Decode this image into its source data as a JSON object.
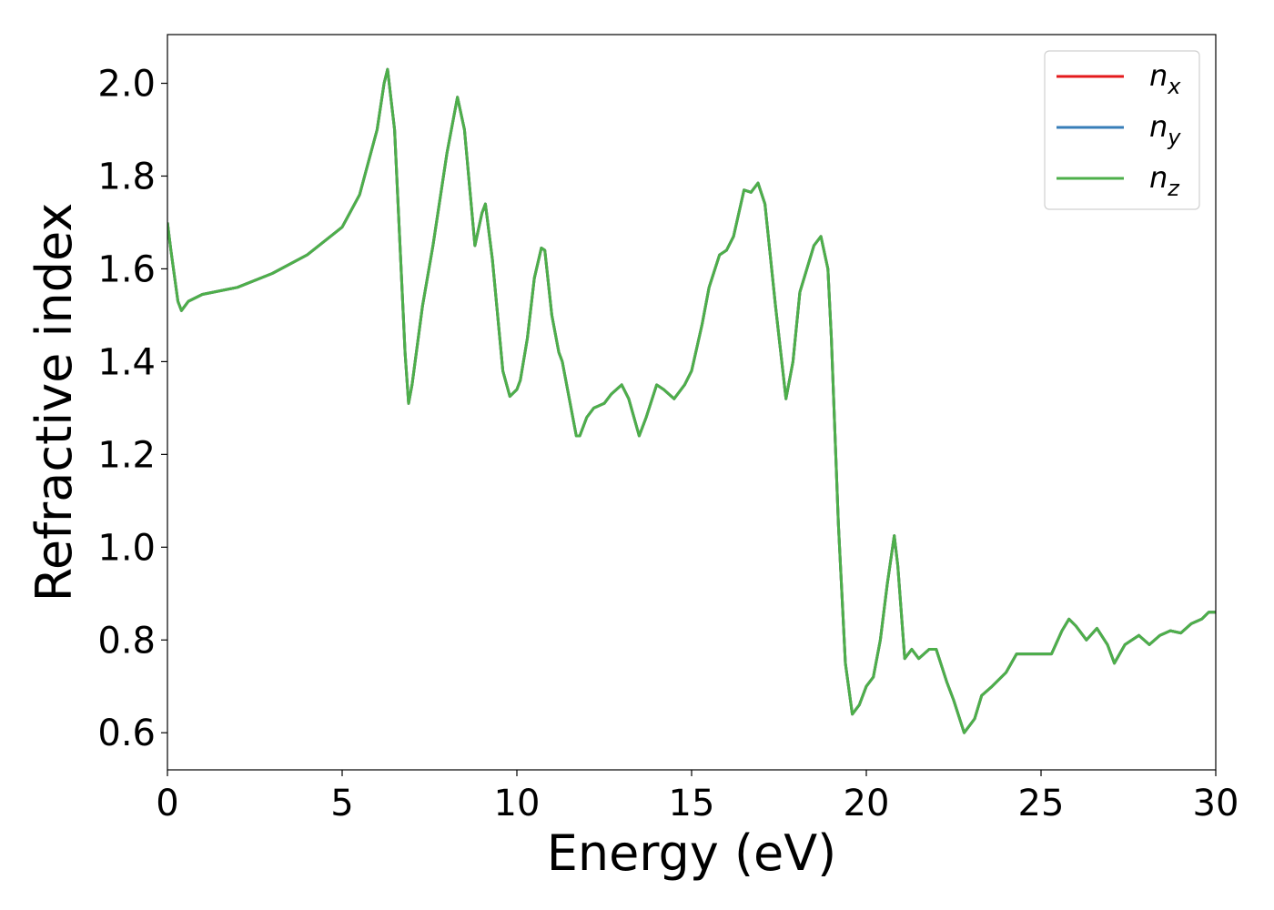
{
  "chart_data": {
    "type": "line",
    "title": "",
    "xlabel": "Energy (eV)",
    "ylabel": "Refractive index",
    "xlim": [
      0,
      30
    ],
    "ylim": [
      0.52,
      2.105
    ],
    "xticks": [
      0,
      5,
      10,
      15,
      20,
      25,
      30
    ],
    "xtick_labels": [
      "0",
      "5",
      "10",
      "15",
      "20",
      "25",
      "30"
    ],
    "yticks": [
      0.6,
      0.8,
      1.0,
      1.2,
      1.4,
      1.6,
      1.8,
      2.0
    ],
    "ytick_labels": [
      "0.6",
      "0.8",
      "1.0",
      "1.2",
      "1.4",
      "1.6",
      "1.8",
      "2.0"
    ],
    "grid": false,
    "legend_position": "top-right",
    "x": [
      0,
      0.1,
      0.3,
      0.4,
      0.6,
      1.0,
      2.0,
      3.0,
      4.0,
      5.0,
      5.5,
      6.0,
      6.2,
      6.3,
      6.5,
      6.8,
      6.9,
      7.0,
      7.3,
      7.6,
      8.0,
      8.3,
      8.5,
      8.8,
      9.0,
      9.1,
      9.3,
      9.6,
      9.8,
      10.0,
      10.1,
      10.3,
      10.5,
      10.7,
      10.8,
      11.0,
      11.2,
      11.3,
      11.5,
      11.7,
      11.8,
      12.0,
      12.2,
      12.5,
      12.7,
      13.0,
      13.2,
      13.5,
      13.7,
      14.0,
      14.2,
      14.5,
      14.8,
      15.0,
      15.3,
      15.5,
      15.8,
      16.0,
      16.2,
      16.5,
      16.7,
      16.9,
      17.1,
      17.4,
      17.7,
      17.9,
      18.1,
      18.3,
      18.5,
      18.7,
      18.9,
      19.0,
      19.2,
      19.4,
      19.6,
      19.8,
      20.0,
      20.2,
      20.4,
      20.6,
      20.8,
      20.9,
      21.1,
      21.3,
      21.5,
      21.8,
      22.0,
      22.3,
      22.5,
      22.8,
      23.0,
      23.1,
      23.3,
      23.6,
      24.0,
      24.3,
      24.6,
      25.0,
      25.3,
      25.6,
      25.8,
      26.0,
      26.3,
      26.6,
      26.9,
      27.1,
      27.4,
      27.8,
      28.1,
      28.4,
      28.7,
      29.0,
      29.3,
      29.6,
      29.8,
      30.0
    ],
    "series": [
      {
        "name": "n_x",
        "color": "#e41a1c",
        "values": [
          1.7,
          1.64,
          1.53,
          1.51,
          1.53,
          1.545,
          1.56,
          1.59,
          1.63,
          1.69,
          1.76,
          1.9,
          2.0,
          2.03,
          1.9,
          1.42,
          1.31,
          1.35,
          1.52,
          1.65,
          1.85,
          1.97,
          1.9,
          1.65,
          1.72,
          1.74,
          1.62,
          1.38,
          1.325,
          1.34,
          1.36,
          1.45,
          1.58,
          1.645,
          1.64,
          1.5,
          1.42,
          1.4,
          1.32,
          1.24,
          1.24,
          1.28,
          1.3,
          1.31,
          1.33,
          1.35,
          1.32,
          1.24,
          1.28,
          1.35,
          1.34,
          1.32,
          1.35,
          1.38,
          1.48,
          1.56,
          1.63,
          1.64,
          1.67,
          1.77,
          1.765,
          1.785,
          1.74,
          1.52,
          1.32,
          1.4,
          1.55,
          1.6,
          1.65,
          1.67,
          1.6,
          1.45,
          1.05,
          0.75,
          0.64,
          0.66,
          0.7,
          0.72,
          0.8,
          0.92,
          1.025,
          0.96,
          0.76,
          0.78,
          0.76,
          0.78,
          0.78,
          0.71,
          0.67,
          0.6,
          0.62,
          0.63,
          0.68,
          0.7,
          0.73,
          0.77,
          0.77,
          0.77,
          0.77,
          0.82,
          0.845,
          0.83,
          0.8,
          0.825,
          0.79,
          0.75,
          0.79,
          0.81,
          0.79,
          0.81,
          0.82,
          0.815,
          0.835,
          0.845,
          0.86,
          0.86
        ]
      },
      {
        "name": "n_y",
        "color": "#377eb8",
        "values": [
          1.7,
          1.64,
          1.53,
          1.51,
          1.53,
          1.545,
          1.56,
          1.59,
          1.63,
          1.69,
          1.76,
          1.9,
          2.0,
          2.03,
          1.9,
          1.42,
          1.31,
          1.35,
          1.52,
          1.65,
          1.85,
          1.97,
          1.9,
          1.65,
          1.72,
          1.74,
          1.62,
          1.38,
          1.325,
          1.34,
          1.36,
          1.45,
          1.58,
          1.645,
          1.64,
          1.5,
          1.42,
          1.4,
          1.32,
          1.24,
          1.24,
          1.28,
          1.3,
          1.31,
          1.33,
          1.35,
          1.32,
          1.24,
          1.28,
          1.35,
          1.34,
          1.32,
          1.35,
          1.38,
          1.48,
          1.56,
          1.63,
          1.64,
          1.67,
          1.77,
          1.765,
          1.785,
          1.74,
          1.52,
          1.32,
          1.4,
          1.55,
          1.6,
          1.65,
          1.67,
          1.6,
          1.45,
          1.05,
          0.75,
          0.64,
          0.66,
          0.7,
          0.72,
          0.8,
          0.92,
          1.025,
          0.96,
          0.76,
          0.78,
          0.76,
          0.78,
          0.78,
          0.71,
          0.67,
          0.6,
          0.62,
          0.63,
          0.68,
          0.7,
          0.73,
          0.77,
          0.77,
          0.77,
          0.77,
          0.82,
          0.845,
          0.83,
          0.8,
          0.825,
          0.79,
          0.75,
          0.79,
          0.81,
          0.79,
          0.81,
          0.82,
          0.815,
          0.835,
          0.845,
          0.86,
          0.86
        ]
      },
      {
        "name": "n_z",
        "color": "#4daf4a",
        "values": [
          1.7,
          1.64,
          1.53,
          1.51,
          1.53,
          1.545,
          1.56,
          1.59,
          1.63,
          1.69,
          1.76,
          1.9,
          2.0,
          2.03,
          1.9,
          1.42,
          1.31,
          1.35,
          1.52,
          1.65,
          1.85,
          1.97,
          1.9,
          1.65,
          1.72,
          1.74,
          1.62,
          1.38,
          1.325,
          1.34,
          1.36,
          1.45,
          1.58,
          1.645,
          1.64,
          1.5,
          1.42,
          1.4,
          1.32,
          1.24,
          1.24,
          1.28,
          1.3,
          1.31,
          1.33,
          1.35,
          1.32,
          1.24,
          1.28,
          1.35,
          1.34,
          1.32,
          1.35,
          1.38,
          1.48,
          1.56,
          1.63,
          1.64,
          1.67,
          1.77,
          1.765,
          1.785,
          1.74,
          1.52,
          1.32,
          1.4,
          1.55,
          1.6,
          1.65,
          1.67,
          1.6,
          1.45,
          1.05,
          0.75,
          0.64,
          0.66,
          0.7,
          0.72,
          0.8,
          0.92,
          1.025,
          0.96,
          0.76,
          0.78,
          0.76,
          0.78,
          0.78,
          0.71,
          0.67,
          0.6,
          0.62,
          0.63,
          0.68,
          0.7,
          0.73,
          0.77,
          0.77,
          0.77,
          0.77,
          0.82,
          0.845,
          0.83,
          0.8,
          0.825,
          0.79,
          0.75,
          0.79,
          0.81,
          0.79,
          0.81,
          0.82,
          0.815,
          0.835,
          0.845,
          0.86,
          0.86
        ]
      }
    ],
    "legend": [
      {
        "base": "n",
        "sub": "x",
        "color": "#e41a1c"
      },
      {
        "base": "n",
        "sub": "y",
        "color": "#377eb8"
      },
      {
        "base": "n",
        "sub": "z",
        "color": "#4daf4a"
      }
    ]
  }
}
